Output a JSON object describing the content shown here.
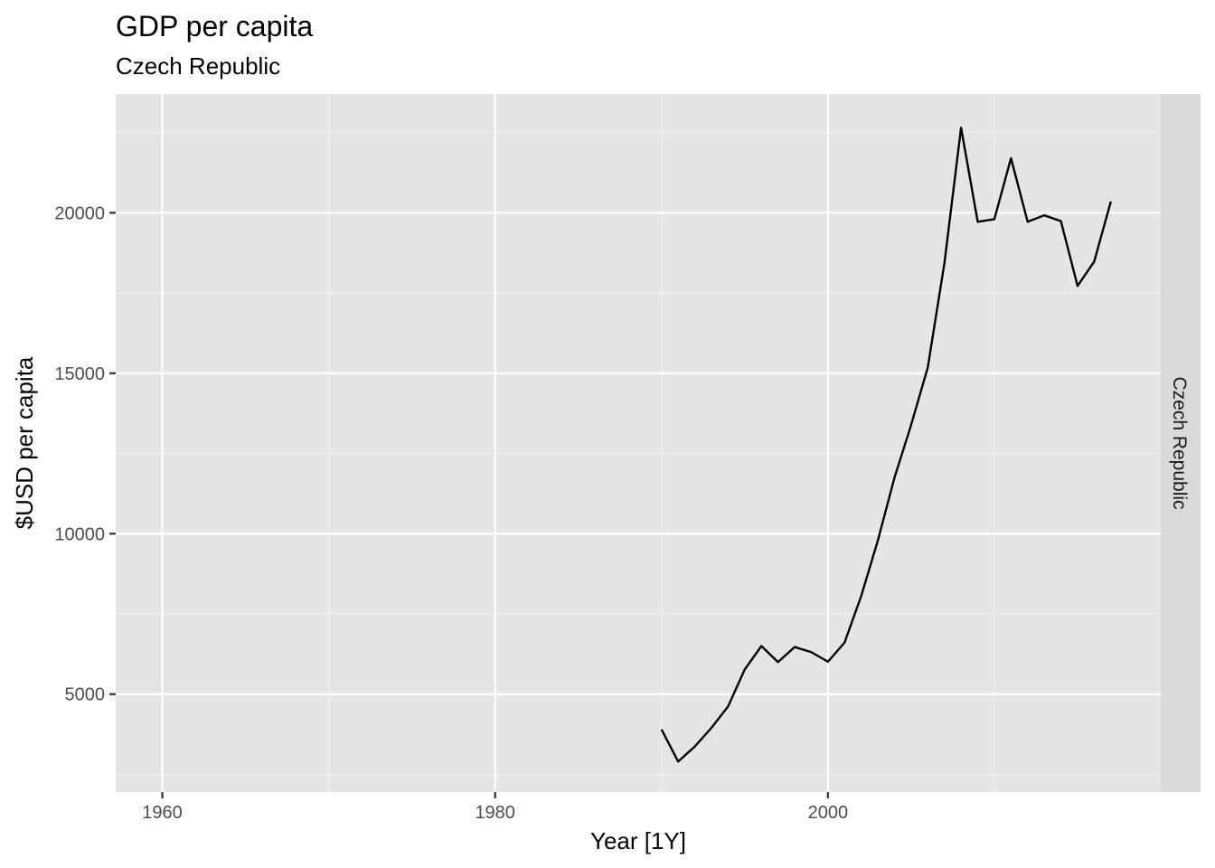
{
  "chart_data": {
    "type": "line",
    "title": "GDP per capita",
    "subtitle": "Czech Republic",
    "xlabel": "Year [1Y]",
    "ylabel": "$USD per capita",
    "facet_label": "Czech Republic",
    "xlim": [
      1957.2,
      2020.0
    ],
    "ylim": [
      1950,
      23700
    ],
    "x_ticks": [
      1960,
      1980,
      2000
    ],
    "x_tick_labels": [
      "1960",
      "1980",
      "2000"
    ],
    "x_minor_ticks": [
      1970,
      1990,
      2010
    ],
    "y_ticks": [
      5000,
      10000,
      15000,
      20000
    ],
    "y_tick_labels": [
      "5000",
      "10000",
      "15000",
      "20000"
    ],
    "y_minor_ticks": [
      2500,
      7500,
      12500,
      17500,
      22500
    ],
    "grid": true,
    "series": [
      {
        "color": "#000000",
        "x": [
          1990,
          1991,
          1992,
          1993,
          1994,
          1995,
          1996,
          1997,
          1998,
          1999,
          2000,
          2001,
          2002,
          2003,
          2004,
          2005,
          2006,
          2007,
          2008,
          2009,
          2010,
          2011,
          2012,
          2013,
          2014,
          2015,
          2016,
          2017
        ],
        "values": [
          3900,
          2900,
          3370,
          3950,
          4620,
          5770,
          6500,
          6000,
          6470,
          6310,
          6010,
          6610,
          8060,
          9790,
          11750,
          13390,
          15180,
          18430,
          22650,
          19720,
          19800,
          21700,
          19720,
          19920,
          19740,
          17720,
          18480,
          20350
        ]
      }
    ]
  },
  "colors": {
    "panel_background": "#e5e5e5",
    "grid_major": "#ffffff",
    "grid_minor": "#f2f2f2",
    "strip_background": "#d9d9d9",
    "line": "#000000"
  }
}
